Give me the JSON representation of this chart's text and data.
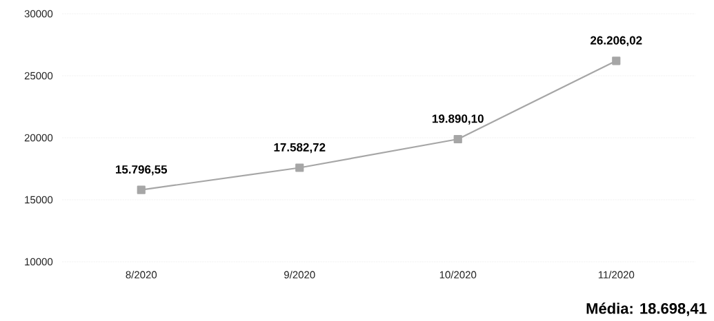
{
  "chart_data": {
    "type": "line",
    "categories": [
      "8/2020",
      "9/2020",
      "10/2020",
      "11/2020"
    ],
    "series": [
      {
        "color": "#a6a6a6",
        "values": [
          15796.55,
          17582.72,
          19890.1,
          26206.02
        ],
        "value_labels": [
          "15.796,55",
          "17.582,72",
          "19.890,10",
          "26.206,02"
        ]
      }
    ],
    "ylim": [
      10000,
      30000
    ],
    "yticks": [
      10000,
      15000,
      20000,
      25000,
      30000
    ],
    "grid": "y",
    "marker": "square",
    "annotations": [
      "**Média: 18.698,41**"
    ]
  }
}
